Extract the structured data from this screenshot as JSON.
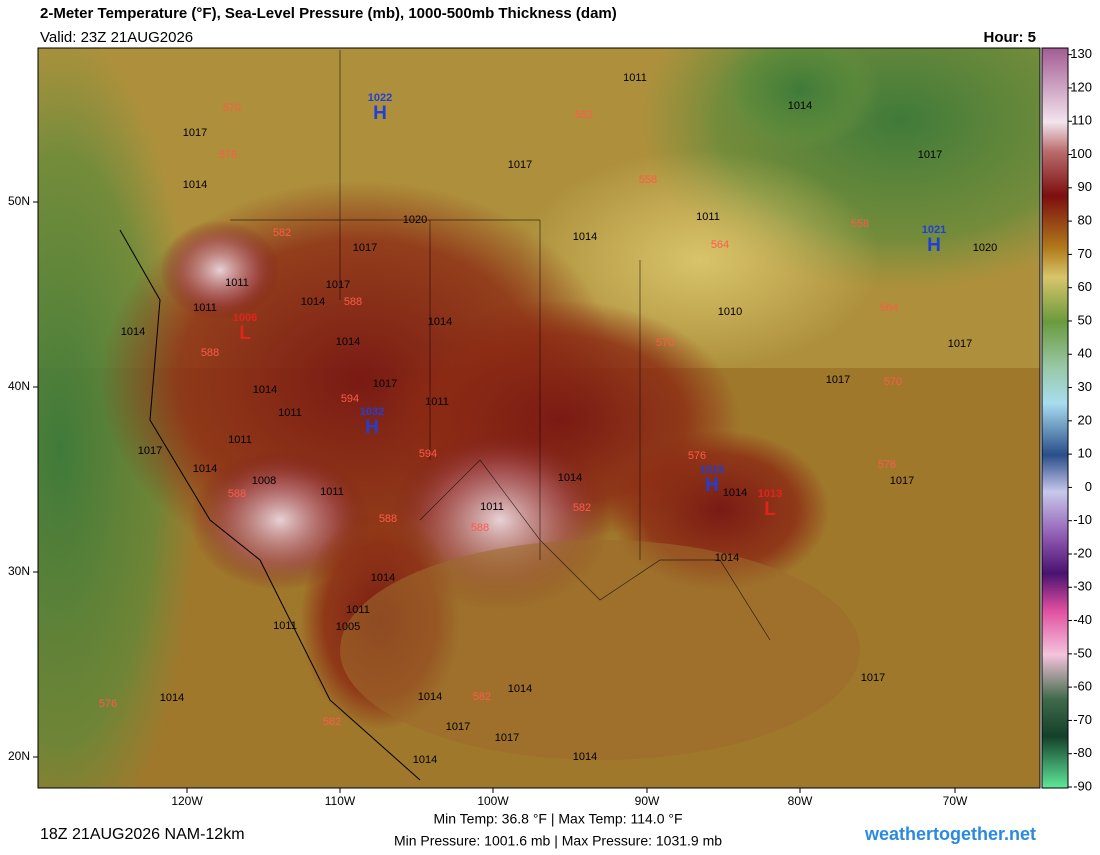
{
  "header": {
    "title": "2-Meter Temperature (°F), Sea-Level Pressure (mb), 1000-500mb Thickness (dam)",
    "valid": "Valid: 23Z 21AUG2026",
    "hour": "Hour: 5"
  },
  "map": {
    "lat_labels": [
      "50N",
      "40N",
      "30N",
      "20N"
    ],
    "lon_labels": [
      "120W",
      "110W",
      "100W",
      "90W",
      "80W",
      "70W"
    ],
    "centers": [
      {
        "letter": "H",
        "pressure": "1022"
      },
      {
        "letter": "L",
        "pressure": "1006"
      },
      {
        "letter": "H",
        "pressure": "1032"
      },
      {
        "letter": "H",
        "pressure": "1015"
      },
      {
        "letter": "L",
        "pressure": "1013"
      },
      {
        "letter": "H",
        "pressure": "1021"
      }
    ],
    "pressure_labels": [
      "1011",
      "1017",
      "1014",
      "1017",
      "1014",
      "1017",
      "1020",
      "1011",
      "1014",
      "1017",
      "1011",
      "1017",
      "1014",
      "1011",
      "1014",
      "1014",
      "1014",
      "1010",
      "1017",
      "1017",
      "1017",
      "1014",
      "1011",
      "1011",
      "1011",
      "1017",
      "1014",
      "1014",
      "1014",
      "1017",
      "1008",
      "1011",
      "1011",
      "1014",
      "1014",
      "1011",
      "1011",
      "1005",
      "1014",
      "1014",
      "1014",
      "1017",
      "1017",
      "1014",
      "1017",
      "1014",
      "1020"
    ],
    "thickness_labels": [
      "570",
      "582",
      "576",
      "558",
      "582",
      "558",
      "564",
      "588",
      "564",
      "588",
      "570",
      "594",
      "570",
      "594",
      "576",
      "576",
      "588",
      "588",
      "582",
      "588",
      "576",
      "582",
      "582"
    ]
  },
  "colorbar": {
    "lim": [
      132,
      -90.3
    ],
    "ticks": [
      130,
      120,
      110,
      100,
      90,
      80,
      70,
      60,
      50,
      40,
      30,
      20,
      10,
      0,
      -10,
      -20,
      -30,
      -40,
      -50,
      -60,
      -70,
      -80,
      -90
    ]
  },
  "footer": {
    "run": "18Z 21AUG2026 NAM-12km",
    "temps": "Min Temp:  36.8 °F | Max Temp: 114.0 °F",
    "pressures": "Min Pressure: 1001.6 mb | Max Pressure: 1031.9 mb",
    "site": "weathertogether.net"
  }
}
